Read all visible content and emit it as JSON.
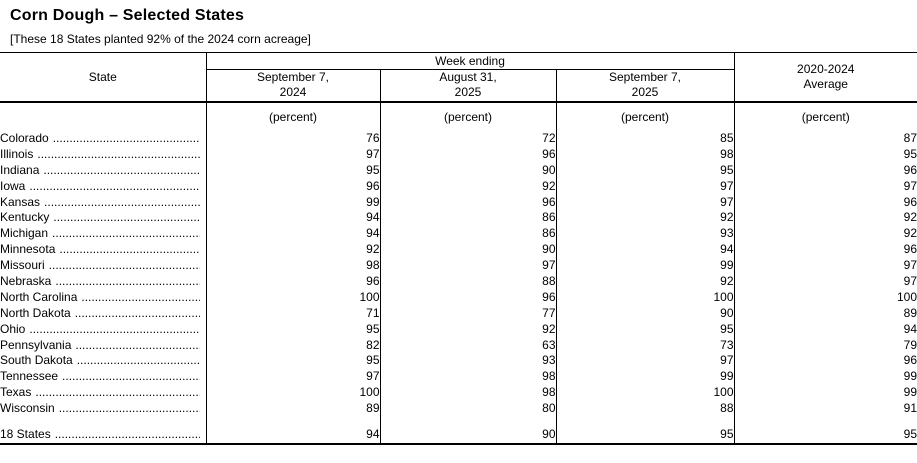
{
  "page": {
    "title": "Corn Dough – Selected States",
    "subtitle": "[These 18 States planted 92% of the 2024 corn acreage]"
  },
  "table": {
    "state_header": "State",
    "col_group_header": "Week ending",
    "avg_header": {
      "line1": "2020-2024",
      "line2": "Average"
    },
    "date_columns": [
      {
        "line1": "September 7,",
        "line2": "2024"
      },
      {
        "line1": "August 31,",
        "line2": "2025"
      },
      {
        "line1": "September 7,",
        "line2": "2025"
      }
    ],
    "unit_label": "(percent)",
    "leader": "......................................................................",
    "rows": [
      {
        "state": "Colorado",
        "values": [
          76,
          72,
          85,
          87
        ]
      },
      {
        "state": "Illinois",
        "values": [
          97,
          96,
          98,
          95
        ]
      },
      {
        "state": "Indiana",
        "values": [
          95,
          90,
          95,
          96
        ]
      },
      {
        "state": "Iowa",
        "values": [
          96,
          92,
          97,
          97
        ]
      },
      {
        "state": "Kansas",
        "values": [
          99,
          96,
          97,
          96
        ]
      },
      {
        "state": "Kentucky",
        "values": [
          94,
          86,
          92,
          92
        ]
      },
      {
        "state": "Michigan",
        "values": [
          94,
          86,
          93,
          92
        ]
      },
      {
        "state": "Minnesota",
        "values": [
          92,
          90,
          94,
          96
        ]
      },
      {
        "state": "Missouri",
        "values": [
          98,
          97,
          99,
          97
        ]
      },
      {
        "state": "Nebraska",
        "values": [
          96,
          88,
          92,
          97
        ]
      },
      {
        "state": "North Carolina",
        "values": [
          100,
          96,
          100,
          100
        ]
      },
      {
        "state": "North Dakota",
        "values": [
          71,
          77,
          90,
          89
        ]
      },
      {
        "state": "Ohio",
        "values": [
          95,
          92,
          95,
          94
        ]
      },
      {
        "state": "Pennsylvania",
        "values": [
          82,
          63,
          73,
          79
        ]
      },
      {
        "state": "South Dakota",
        "values": [
          95,
          93,
          97,
          96
        ]
      },
      {
        "state": "Tennessee",
        "values": [
          97,
          98,
          99,
          99
        ]
      },
      {
        "state": "Texas",
        "values": [
          100,
          98,
          100,
          99
        ]
      },
      {
        "state": "Wisconsin",
        "values": [
          89,
          80,
          88,
          91
        ]
      }
    ],
    "total_row": {
      "state": "18 States",
      "values": [
        94,
        90,
        95,
        95
      ]
    }
  }
}
